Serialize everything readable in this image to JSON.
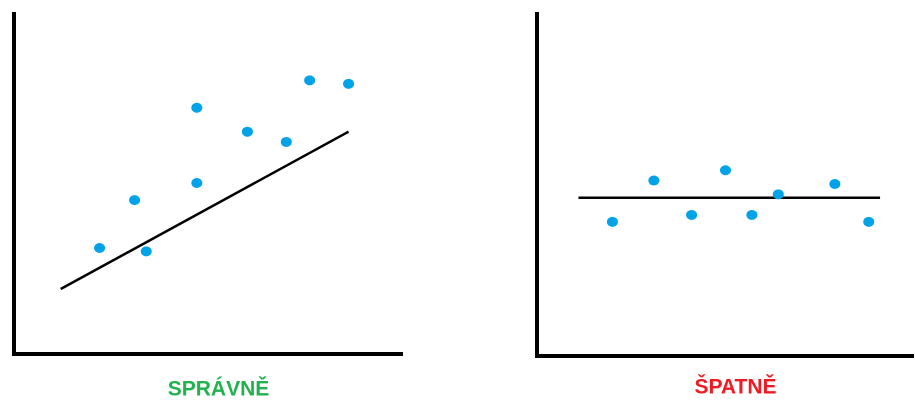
{
  "chart_data": [
    {
      "type": "scatter",
      "title": "SPRÁVNĚ",
      "title_color": "#22b14c",
      "color": "#00a2e8",
      "x": [
        22,
        31,
        34,
        47,
        47,
        60,
        70,
        76,
        86
      ],
      "values": [
        31,
        45,
        30,
        72,
        50,
        65,
        62,
        80,
        79
      ],
      "fit": {
        "x": [
          12,
          86
        ],
        "y": [
          19,
          65
        ]
      },
      "xlim": [
        0,
        100
      ],
      "ylim": [
        0,
        100
      ]
    },
    {
      "type": "scatter",
      "title": "ŠPATNĚ",
      "title_color": "#ed1c24",
      "color": "#00a2e8",
      "x": [
        20,
        31,
        41,
        50,
        57,
        64,
        79,
        88
      ],
      "values": [
        39,
        51,
        41,
        54,
        41,
        47,
        50,
        39
      ],
      "fit": {
        "x": [
          11,
          91
        ],
        "y": [
          46,
          46
        ]
      },
      "xlim": [
        0,
        100
      ],
      "ylim": [
        0,
        100
      ]
    }
  ]
}
